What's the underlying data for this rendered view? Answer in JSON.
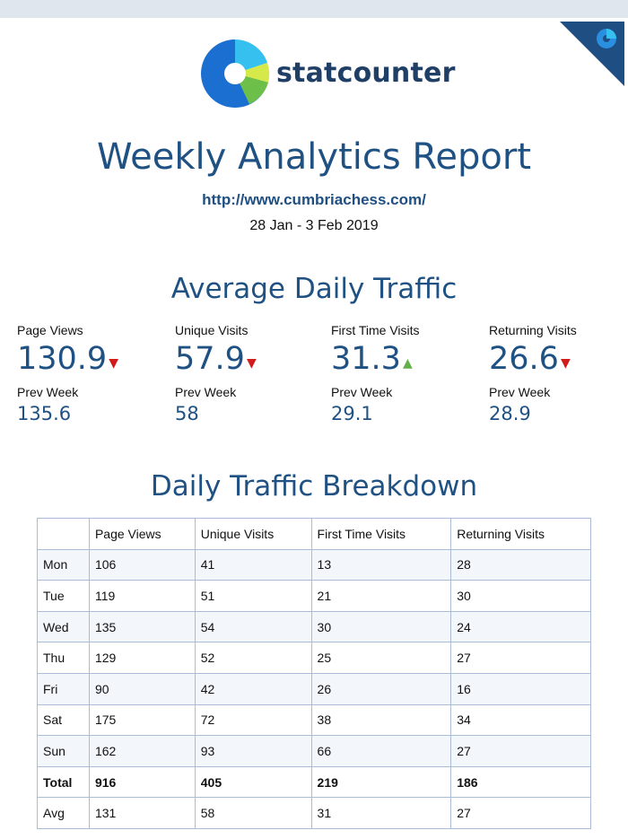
{
  "brand": {
    "name": "statcounter",
    "logo_icon": "statcounter-logo-icon"
  },
  "report": {
    "title": "Weekly Analytics Report",
    "url": "http://www.cumbriachess.com/",
    "date_range": "28 Jan - 3 Feb 2019"
  },
  "average_daily_traffic": {
    "heading": "Average Daily Traffic",
    "prev_label": "Prev Week",
    "stats": [
      {
        "label": "Page Views",
        "value": "130.9",
        "trend": "down",
        "prev": "135.6"
      },
      {
        "label": "Unique Visits",
        "value": "57.9",
        "trend": "down",
        "prev": "58"
      },
      {
        "label": "First Time Visits",
        "value": "31.3",
        "trend": "up",
        "prev": "29.1"
      },
      {
        "label": "Returning Visits",
        "value": "26.6",
        "trend": "down",
        "prev": "28.9"
      }
    ]
  },
  "daily_breakdown": {
    "heading": "Daily Traffic Breakdown",
    "columns": [
      "",
      "Page Views",
      "Unique Visits",
      "First Time Visits",
      "Returning Visits"
    ],
    "rows": [
      [
        "Mon",
        "106",
        "41",
        "13",
        "28"
      ],
      [
        "Tue",
        "119",
        "51",
        "21",
        "30"
      ],
      [
        "Wed",
        "135",
        "54",
        "30",
        "24"
      ],
      [
        "Thu",
        "129",
        "52",
        "25",
        "27"
      ],
      [
        "Fri",
        "90",
        "42",
        "26",
        "16"
      ],
      [
        "Sat",
        "175",
        "72",
        "38",
        "34"
      ],
      [
        "Sun",
        "162",
        "93",
        "66",
        "27"
      ],
      [
        "Total",
        "916",
        "405",
        "219",
        "186"
      ],
      [
        "Avg",
        "131",
        "58",
        "31",
        "27"
      ]
    ]
  },
  "colors": {
    "accent": "#1f5183",
    "down": "#d21b1b",
    "up": "#63b04a",
    "corner": "#1f4f82"
  }
}
